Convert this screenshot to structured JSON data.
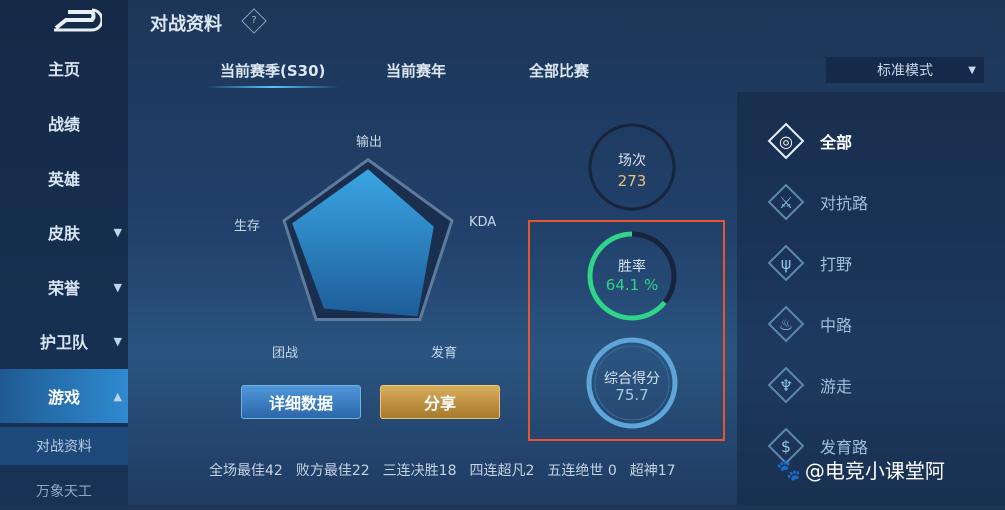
{
  "page_title": "对战资料",
  "help_icon": "?",
  "sidebar": {
    "items": [
      {
        "label": "主页",
        "expandable": false
      },
      {
        "label": "战绩",
        "expandable": false
      },
      {
        "label": "英雄",
        "expandable": false
      },
      {
        "label": "皮肤",
        "expandable": true
      },
      {
        "label": "荣誉",
        "expandable": true
      },
      {
        "label": "护卫队",
        "expandable": true
      },
      {
        "label": "游戏",
        "expandable": true,
        "active": true
      }
    ],
    "subitems": [
      {
        "label": "对战资料",
        "active": true
      },
      {
        "label": "万象天工"
      }
    ]
  },
  "tabs": [
    {
      "label": "当前赛季(S30)",
      "active": true
    },
    {
      "label": "当前赛年"
    },
    {
      "label": "全部比赛"
    }
  ],
  "mode_select": {
    "value": "标准模式"
  },
  "radar": {
    "axes": [
      "输出",
      "KDA",
      "发育",
      "团战",
      "生存"
    ],
    "values": [
      0.82,
      0.72,
      0.88,
      0.78,
      0.83
    ]
  },
  "rings": {
    "matches": {
      "label": "场次",
      "value": "273",
      "color": "#e9c27a"
    },
    "winrate": {
      "label": "胜率",
      "value": "64.1 %",
      "fraction": 0.641,
      "color": "#2fd48a"
    },
    "score": {
      "label": "综合得分",
      "value": "75.7",
      "color": "#5ea6d8"
    }
  },
  "buttons": {
    "detail": "详细数据",
    "share": "分享"
  },
  "stats": [
    "全场最佳42",
    "败方最佳22",
    "三连决胜18",
    "四连超凡2",
    "五连绝世 0",
    "超神17"
  ],
  "roles": [
    {
      "label": "全部",
      "icon": "all-role-icon",
      "active": true
    },
    {
      "label": "对抗路",
      "icon": "swords-icon"
    },
    {
      "label": "打野",
      "icon": "claw-icon"
    },
    {
      "label": "中路",
      "icon": "flame-icon"
    },
    {
      "label": "游走",
      "icon": "mask-icon"
    },
    {
      "label": "发育路",
      "icon": "coin-icon"
    }
  ],
  "watermark": "@电竞小课堂阿"
}
